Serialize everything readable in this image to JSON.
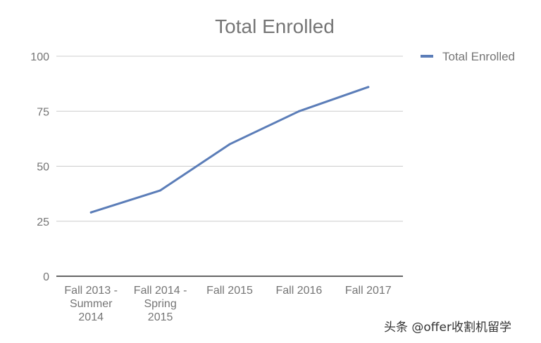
{
  "chart_data": {
    "type": "line",
    "title": "Total Enrolled",
    "xlabel": "",
    "ylabel": "",
    "categories": [
      [
        "Fall 2013 -",
        "Summer",
        "2014"
      ],
      [
        "Fall 2014 -",
        "Spring",
        "2015"
      ],
      [
        "Fall 2015"
      ],
      [
        "Fall 2016"
      ],
      [
        "Fall 2017"
      ]
    ],
    "series": [
      {
        "name": "Total Enrolled",
        "values": [
          29,
          39,
          60,
          75,
          86
        ],
        "color": "#5B7DB8"
      }
    ],
    "ylim": [
      0,
      100
    ],
    "yticks": [
      0,
      25,
      50,
      75,
      100
    ],
    "grid": true,
    "legend_position": "right"
  },
  "watermark": "头条 @offer收割机留学"
}
